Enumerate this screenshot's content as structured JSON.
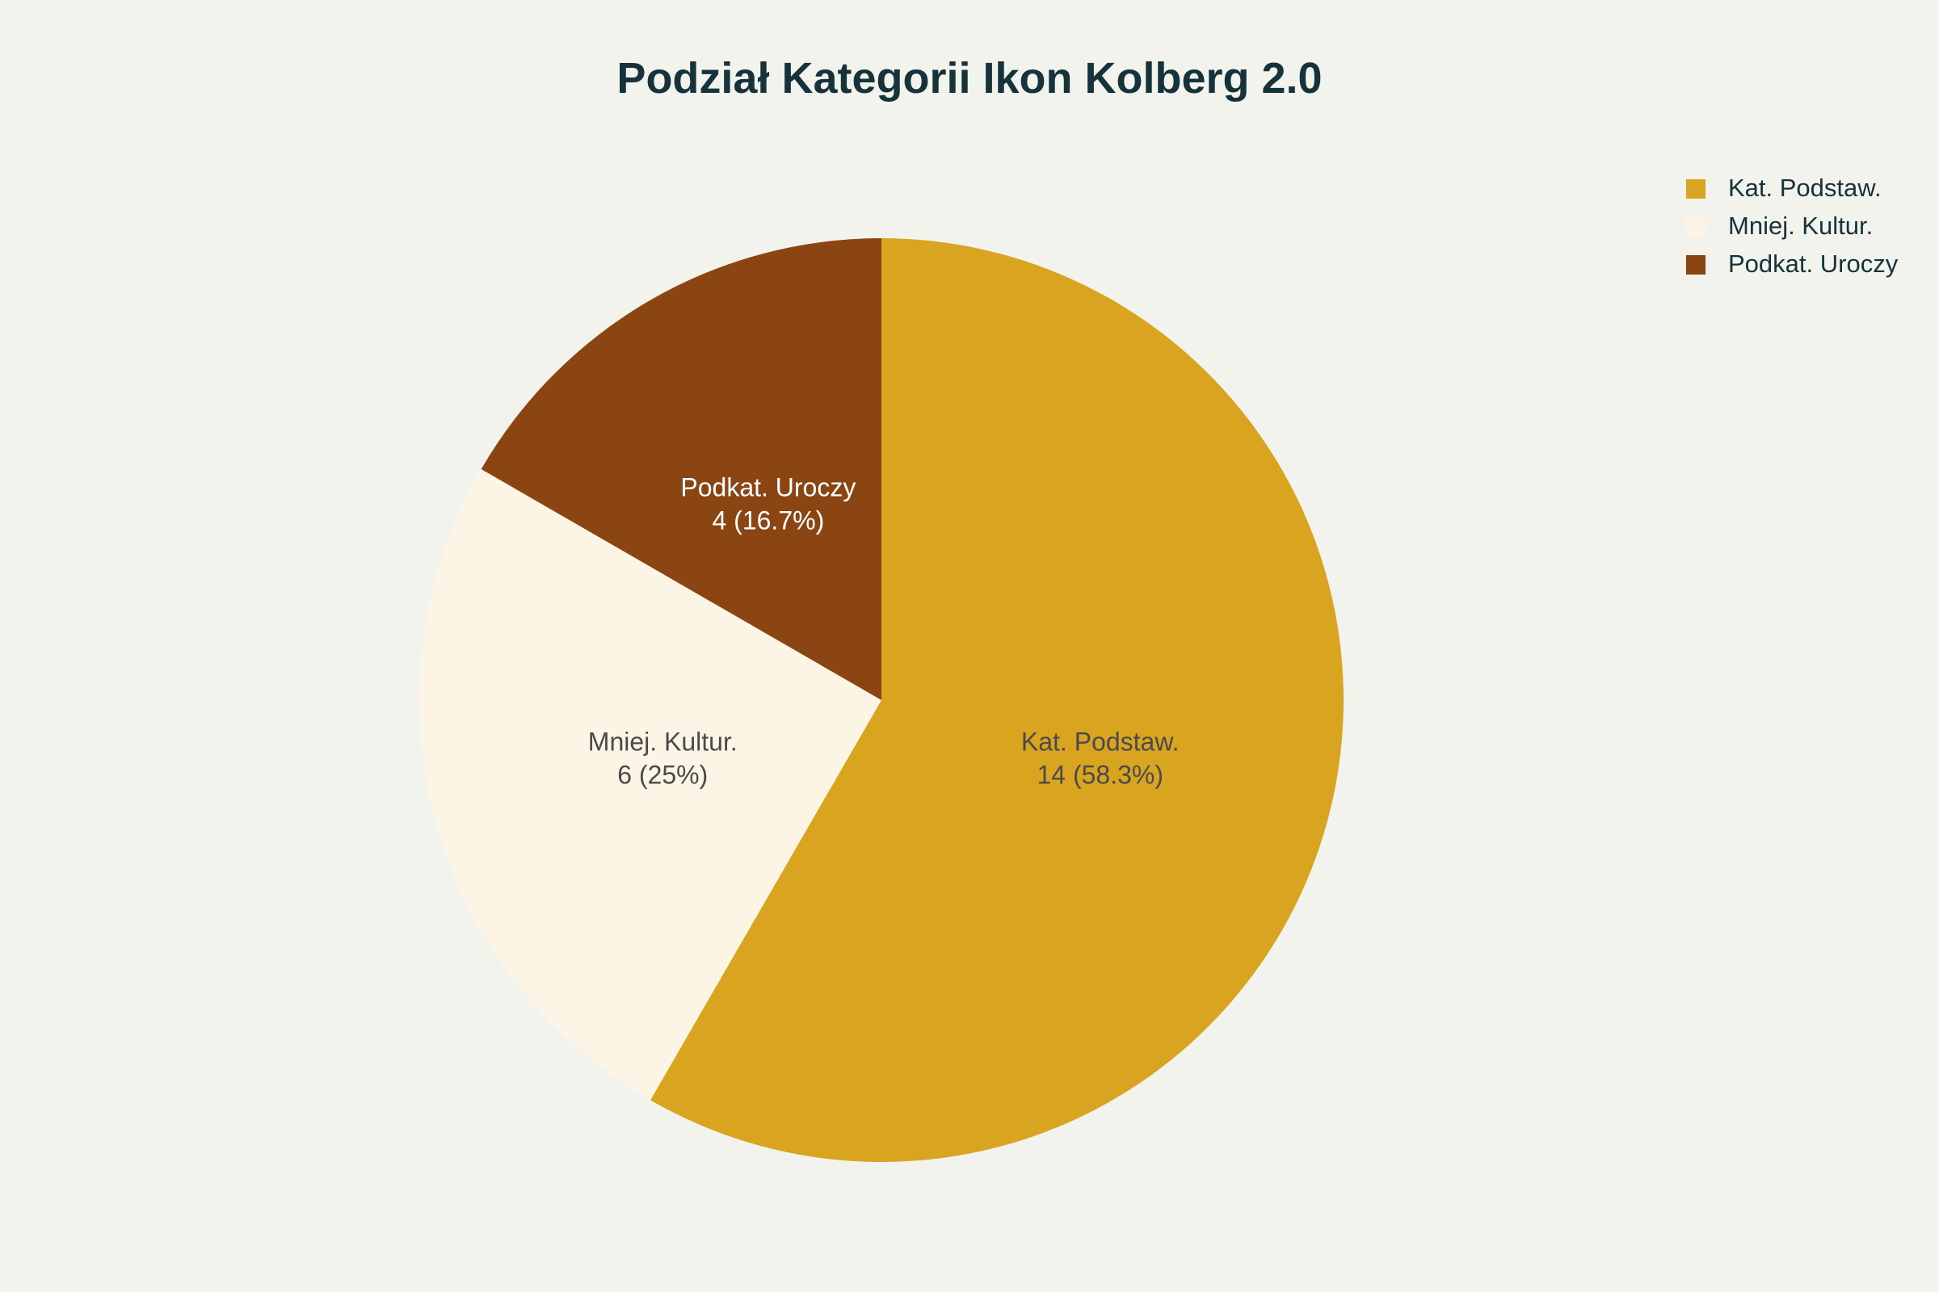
{
  "chart_data": {
    "type": "pie",
    "title": "Podział Kategorii Ikon Kolberg 2.0",
    "legend_position": "top-right",
    "slices": [
      {
        "label": "Kat. Podstaw.",
        "value": 14,
        "percent_text": "14 (58.3%)",
        "color": "#D9A521",
        "text_color": "#4A4A4A"
      },
      {
        "label": "Mniej. Kultur.",
        "value": 6,
        "percent_text": "6 (25%)",
        "color": "#FCF5E6",
        "text_color": "#4A4A4A"
      },
      {
        "label": "Podkat. Uroczy",
        "value": 4,
        "percent_text": "4 (16.7%)",
        "color": "#8B4513",
        "text_color": "#FFFFFF"
      }
    ],
    "legend": [
      "Kat. Podstaw.",
      "Mniej. Kultur.",
      "Podkat. Uroczy"
    ]
  }
}
